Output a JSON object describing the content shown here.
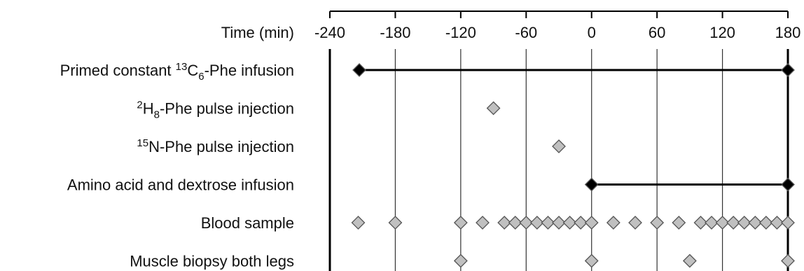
{
  "chart_data": {
    "type": "scatter",
    "axis_title": "Time (min)",
    "x_ticks": [
      -240,
      -180,
      -120,
      -60,
      0,
      60,
      120,
      180
    ],
    "xlim": [
      -240,
      180
    ],
    "grid": true,
    "rows": [
      {
        "label_parts": [
          {
            "t": "Primed constant ",
            "s": "normal"
          },
          {
            "t": "13",
            "s": "sup"
          },
          {
            "t": "C",
            "s": "normal"
          },
          {
            "t": "6",
            "s": "sub"
          },
          {
            "t": "-Phe infusion",
            "s": "normal"
          }
        ],
        "lines": [
          [
            -213,
            180
          ]
        ],
        "points": [
          {
            "x": -213,
            "fill": "#000000"
          },
          {
            "x": 180,
            "fill": "#000000"
          }
        ]
      },
      {
        "label_parts": [
          {
            "t": "2",
            "s": "sup"
          },
          {
            "t": "H",
            "s": "normal"
          },
          {
            "t": "8",
            "s": "sub"
          },
          {
            "t": "-Phe pulse injection",
            "s": "normal"
          }
        ],
        "lines": [],
        "points": [
          {
            "x": -90,
            "fill": "#c0c0c0"
          }
        ]
      },
      {
        "label_parts": [
          {
            "t": "15",
            "s": "sup"
          },
          {
            "t": "N-Phe pulse injection",
            "s": "normal"
          }
        ],
        "lines": [],
        "points": [
          {
            "x": -30,
            "fill": "#c0c0c0"
          }
        ]
      },
      {
        "label_parts": [
          {
            "t": "Amino acid and dextrose infusion",
            "s": "normal"
          }
        ],
        "lines": [
          [
            0,
            180
          ]
        ],
        "points": [
          {
            "x": 0,
            "fill": "#000000"
          },
          {
            "x": 180,
            "fill": "#000000"
          }
        ]
      },
      {
        "label_parts": [
          {
            "t": "Blood sample",
            "s": "normal"
          }
        ],
        "lines": [],
        "points": [
          {
            "x": -214,
            "fill": "#c0c0c0"
          },
          {
            "x": -180,
            "fill": "#c0c0c0"
          },
          {
            "x": -120,
            "fill": "#c0c0c0"
          },
          {
            "x": -100,
            "fill": "#c0c0c0"
          },
          {
            "x": -80,
            "fill": "#c0c0c0"
          },
          {
            "x": -70,
            "fill": "#c0c0c0"
          },
          {
            "x": -60,
            "fill": "#c0c0c0"
          },
          {
            "x": -50,
            "fill": "#c0c0c0"
          },
          {
            "x": -40,
            "fill": "#c0c0c0"
          },
          {
            "x": -30,
            "fill": "#c0c0c0"
          },
          {
            "x": -20,
            "fill": "#c0c0c0"
          },
          {
            "x": -10,
            "fill": "#c0c0c0"
          },
          {
            "x": 0,
            "fill": "#c0c0c0"
          },
          {
            "x": 20,
            "fill": "#c0c0c0"
          },
          {
            "x": 40,
            "fill": "#c0c0c0"
          },
          {
            "x": 60,
            "fill": "#c0c0c0"
          },
          {
            "x": 80,
            "fill": "#c0c0c0"
          },
          {
            "x": 100,
            "fill": "#c0c0c0"
          },
          {
            "x": 110,
            "fill": "#c0c0c0"
          },
          {
            "x": 120,
            "fill": "#c0c0c0"
          },
          {
            "x": 130,
            "fill": "#c0c0c0"
          },
          {
            "x": 140,
            "fill": "#c0c0c0"
          },
          {
            "x": 150,
            "fill": "#c0c0c0"
          },
          {
            "x": 160,
            "fill": "#c0c0c0"
          },
          {
            "x": 170,
            "fill": "#c0c0c0"
          },
          {
            "x": 180,
            "fill": "#c0c0c0"
          }
        ]
      },
      {
        "label_parts": [
          {
            "t": "Muscle biopsy both legs",
            "s": "normal"
          }
        ],
        "lines": [],
        "points": [
          {
            "x": -120,
            "fill": "#c0c0c0"
          },
          {
            "x": 0,
            "fill": "#c0c0c0"
          },
          {
            "x": 90,
            "fill": "#c0c0c0"
          },
          {
            "x": 180,
            "fill": "#c0c0c0"
          }
        ]
      }
    ]
  }
}
